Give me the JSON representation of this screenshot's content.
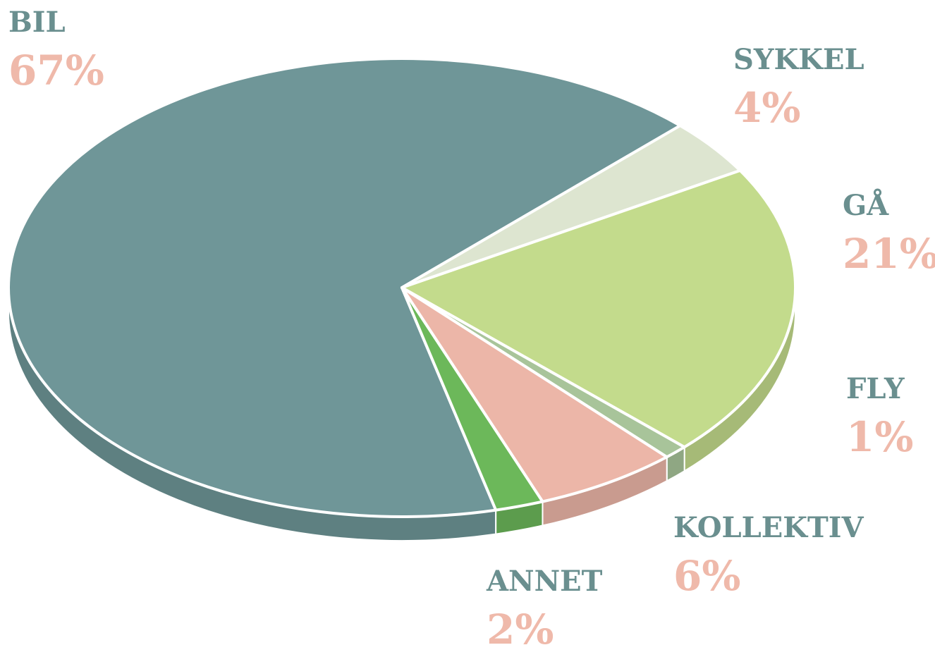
{
  "chart_data": {
    "type": "pie",
    "categories": [
      "BIL",
      "SYKKEL",
      "GÅ",
      "FLY",
      "KOLLEKTIV",
      "ANNET"
    ],
    "values": [
      67,
      4,
      21,
      1,
      6,
      2
    ],
    "value_labels": [
      "67%",
      "4%",
      "21%",
      "1%",
      "6%",
      "2%"
    ],
    "colors": [
      "#6f9698",
      "#dde5d0",
      "#c3db8c",
      "#a8c49a",
      "#ecb6a8",
      "#6cb85a"
    ],
    "label_color": "#6a8f8f",
    "value_label_color": "#efb9aa"
  }
}
